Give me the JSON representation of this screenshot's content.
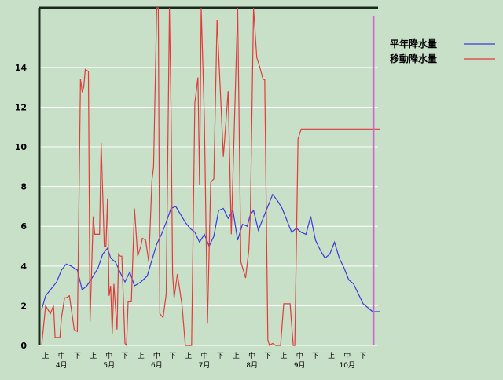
{
  "chart_data": {
    "type": "line",
    "ylim": [
      0,
      17
    ],
    "y_ticks": [
      0,
      2,
      4,
      6,
      8,
      10,
      12,
      14
    ],
    "grid": true,
    "legend_position": "top-right",
    "x_tick_labels": [
      "上",
      "中",
      "下",
      "上",
      "中",
      "下",
      "上",
      "中",
      "下",
      "上",
      "中",
      "下",
      "上",
      "中",
      "下",
      "上",
      "中",
      "下",
      "上",
      "中",
      "下"
    ],
    "months": [
      {
        "label": "4月",
        "dekad_index": 1
      },
      {
        "label": "5月",
        "dekad_index": 4
      },
      {
        "label": "6月",
        "dekad_index": 7
      },
      {
        "label": "7月",
        "dekad_index": 10
      },
      {
        "label": "8月",
        "dekad_index": 13
      },
      {
        "label": "9月",
        "dekad_index": 16
      },
      {
        "label": "10月",
        "dekad_index": 19
      }
    ],
    "dekad_range": [
      -0.25,
      21.4
    ],
    "series": [
      {
        "name": "平年降水量",
        "color": "#3b3bdc",
        "x": [
          -0.25,
          0.0,
          0.3,
          0.7,
          1.0,
          1.3,
          1.6,
          2.0,
          2.3,
          2.6,
          3.0,
          3.3,
          3.6,
          3.9,
          4.1,
          4.4,
          4.8,
          5.0,
          5.3,
          5.6,
          6.0,
          6.4,
          6.7,
          7.0,
          7.3,
          7.6,
          7.9,
          8.2,
          8.5,
          8.8,
          9.1,
          9.4,
          9.7,
          10.0,
          10.3,
          10.6,
          10.9,
          11.2,
          11.5,
          11.8,
          12.1,
          12.4,
          12.7,
          12.9,
          13.1,
          13.4,
          13.7,
          14.0,
          14.3,
          14.6,
          14.9,
          15.2,
          15.5,
          15.8,
          16.1,
          16.4,
          16.7,
          17.0,
          17.3,
          17.6,
          17.9,
          18.2,
          18.5,
          18.8,
          19.1,
          19.4,
          19.7,
          20.0,
          20.3,
          20.6,
          21.4
        ],
        "y": [
          1.8,
          2.5,
          2.8,
          3.2,
          3.8,
          4.1,
          4.0,
          3.8,
          2.8,
          3.0,
          3.5,
          3.9,
          4.6,
          4.9,
          4.4,
          4.2,
          3.5,
          3.2,
          3.7,
          3.0,
          3.2,
          3.5,
          4.3,
          5.1,
          5.6,
          6.2,
          6.9,
          7.0,
          6.6,
          6.2,
          5.9,
          5.7,
          5.2,
          5.6,
          5.0,
          5.5,
          6.8,
          6.9,
          6.4,
          6.8,
          5.3,
          6.1,
          6.0,
          6.6,
          6.8,
          5.8,
          6.4,
          7.0,
          7.6,
          7.3,
          6.9,
          6.3,
          5.7,
          5.9,
          5.7,
          5.6,
          6.5,
          5.3,
          4.8,
          4.4,
          4.6,
          5.2,
          4.4,
          3.9,
          3.3,
          3.1,
          2.6,
          2.1,
          1.9,
          1.7,
          1.7
        ]
      },
      {
        "name": "移動降水量",
        "color": "#e03c3c",
        "x": [
          -0.25,
          0.0,
          0.3,
          0.5,
          0.6,
          0.9,
          1.0,
          1.2,
          1.3,
          1.5,
          1.7,
          1.8,
          2.0,
          2.2,
          2.3,
          2.4,
          2.5,
          2.7,
          2.8,
          3.0,
          3.1,
          3.2,
          3.4,
          3.5,
          3.7,
          3.8,
          3.9,
          4.0,
          4.1,
          4.2,
          4.3,
          4.5,
          4.6,
          4.7,
          4.8,
          5.0,
          5.1,
          5.2,
          5.4,
          5.6,
          5.8,
          6.0,
          6.1,
          6.3,
          6.5,
          6.7,
          6.8,
          7.0,
          7.1,
          7.2,
          7.4,
          7.6,
          7.8,
          7.9,
          8.0,
          8.1,
          8.3,
          8.6,
          8.8,
          9.0,
          9.1,
          9.2,
          9.4,
          9.6,
          9.7,
          9.8,
          10.0,
          10.2,
          10.4,
          10.6,
          10.8,
          11.2,
          11.5,
          11.7,
          12.1,
          12.3,
          12.6,
          12.8,
          12.9,
          13.1,
          13.3,
          13.5,
          13.7,
          13.8,
          14.0,
          14.1,
          14.3,
          14.5,
          14.8,
          15.0,
          15.2,
          15.4,
          15.6,
          15.7,
          15.9,
          16.1,
          16.3,
          16.5,
          16.7,
          16.9,
          17.1,
          17.3,
          17.4,
          17.6,
          17.8,
          18.0,
          18.2,
          18.4,
          18.7,
          18.9,
          19.1,
          19.4,
          19.6,
          19.8,
          20.0,
          20.2,
          20.4,
          20.7,
          21.0,
          21.4
        ],
        "y": [
          0.0,
          2.0,
          1.6,
          2.0,
          0.4,
          0.4,
          1.4,
          2.4,
          2.4,
          2.5,
          1.4,
          0.8,
          0.7,
          13.4,
          12.8,
          13.0,
          13.9,
          13.8,
          1.2,
          6.5,
          5.6,
          5.6,
          5.6,
          10.2,
          5.0,
          5.0,
          7.4,
          2.5,
          3.0,
          0.6,
          3.1,
          0.8,
          4.6,
          4.5,
          4.5,
          0.1,
          0.0,
          2.2,
          2.2,
          6.9,
          4.5,
          5.0,
          5.4,
          5.3,
          4.2,
          8.3,
          9.0,
          20.0,
          19.0,
          1.6,
          1.4,
          2.6,
          19.0,
          12.0,
          3.6,
          2.4,
          3.6,
          2.0,
          0.0,
          0.0,
          0.0,
          0.0,
          12.2,
          13.5,
          8.1,
          20.0,
          11.5,
          1.1,
          8.2,
          8.4,
          16.4,
          9.5,
          12.8,
          5.6,
          20.0,
          4.2,
          3.4,
          4.8,
          6.7,
          20.0,
          14.5,
          14.0,
          13.4,
          13.4,
          0.3,
          0.0,
          0.1,
          0.0,
          0.0,
          2.1,
          2.1,
          2.1,
          0.0,
          0.0,
          10.4,
          10.9,
          10.9,
          10.9,
          10.9,
          10.9,
          10.9,
          10.9,
          10.9,
          10.9,
          10.9,
          10.9,
          10.9,
          10.9,
          10.9,
          10.9,
          10.9,
          10.9,
          10.9,
          10.9,
          10.9,
          10.9,
          10.9,
          10.9,
          10.9,
          10.9
        ]
      }
    ],
    "current_date_line": {
      "dekad": 20.65,
      "color": "#cc66cc"
    }
  }
}
